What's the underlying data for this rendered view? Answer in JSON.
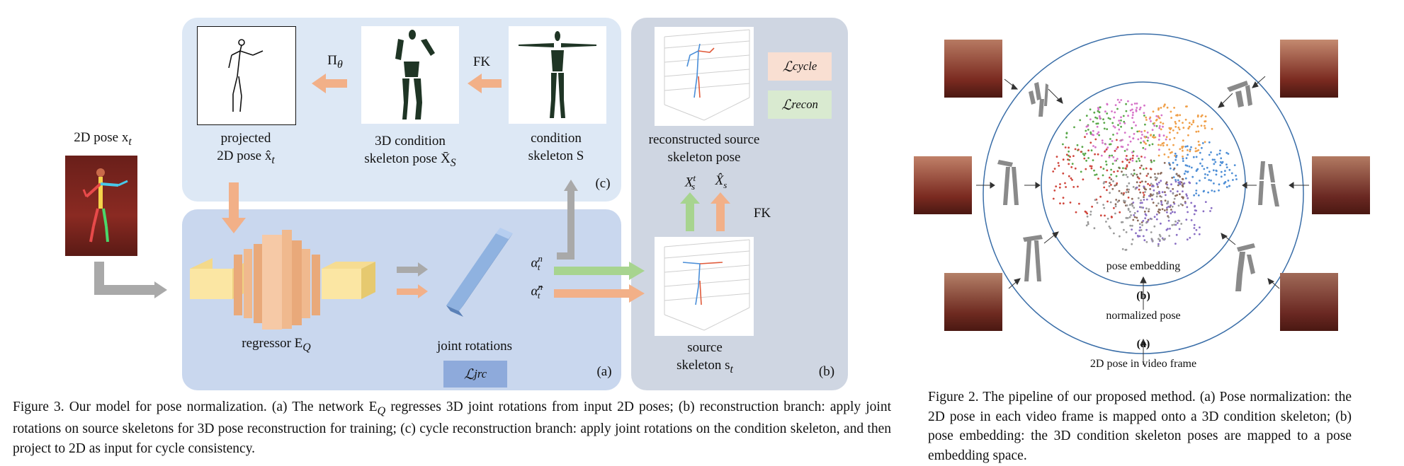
{
  "figure3": {
    "label_2d_pose": "2D pose x",
    "label_2d_pose_sub": "t",
    "label_projected": [
      "projected",
      "2D pose x̂"
    ],
    "label_projected_sub": "t",
    "label_3d_condition": [
      "3D condition",
      "skeleton pose X̄"
    ],
    "label_3d_condition_sub": "S",
    "label_condition_skeleton": [
      "condition",
      "skeleton S"
    ],
    "label_reconstructed": [
      "reconstructed source",
      "skeleton pose"
    ],
    "label_regressor": "regressor E",
    "label_regressor_sub": "Q",
    "label_joint_rotations": "joint rotations",
    "label_source_skeleton": [
      "source",
      "skeleton s"
    ],
    "label_source_sub": "t",
    "arrow_pi": "Π",
    "arrow_pi_sub": "θ",
    "arrow_fk_top": "FK",
    "arrow_fk_right": "FK",
    "alpha": "α",
    "alpha_sup": "n",
    "alpha_sub": "t",
    "alpha_hat": "α̂",
    "alpha_hat_sup": "n",
    "alpha_hat_sub": "t",
    "xs_t": "X",
    "xs_t_sup": "t",
    "xs_t_sub": "s",
    "xs_hat": "X̂",
    "xs_hat_sub": "s",
    "loss_cycle": "ℒ",
    "loss_cycle_sub": "cycle",
    "loss_recon": "ℒ",
    "loss_recon_sub": "recon",
    "loss_jrc": "ℒ",
    "loss_jrc_sub": "jrc",
    "panel_a": "(a)",
    "panel_b": "(b)",
    "panel_c": "(c)",
    "caption_lines": [
      "Figure 3.  Our model for pose normalization. (a) The network E",
      "Q",
      " regresses 3D joint rotations from input 2D poses; (b) reconstruction branch: apply joint rotations on source skeletons for 3D pose reconstruction for training; (c) cycle reconstruction branch: apply joint rotations on the condition skeleton, and then project to 2D as input for cycle consistency."
    ],
    "colors": {
      "panel_c_bg": "#dde8f5",
      "panel_a_bg": "#c9d7ee",
      "panel_b_bg": "#cfd6e2",
      "arrow_orange": "#f2b088",
      "arrow_green": "#a7d48f",
      "arrow_gray": "#a9a9a9",
      "loss_cycle_bg": "#f9dfd2",
      "loss_recon_bg": "#d9ead0",
      "loss_jrc_bg": "#8eaadb"
    }
  },
  "figure2": {
    "label_pose_embedding": "pose embedding",
    "label_b": "(b)",
    "label_normalized_pose": "normalized pose",
    "label_a": "(a)",
    "label_2d_video": "2D pose in video frame",
    "caption": "Figure 2.   The pipeline of our proposed method. (a) Pose normalization: the 2D pose in each video frame is mapped onto a 3D condition skeleton; (b) pose embedding: the 3D condition skeleton poses are mapped to a pose embedding space.",
    "colors": {
      "circle": "#3a6ea8",
      "cluster_red": "#d0473d",
      "cluster_green": "#5aa84a",
      "cluster_blue": "#4f8fd6",
      "cluster_pink": "#d673c8",
      "cluster_orange": "#f0a04a",
      "cluster_brown": "#8b6a5a",
      "cluster_purple": "#8a6fc4",
      "cluster_gray": "#9a9a9a"
    }
  }
}
